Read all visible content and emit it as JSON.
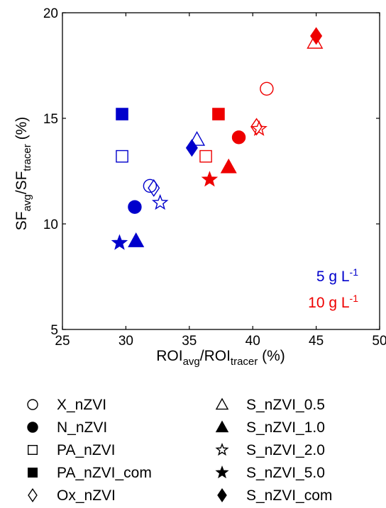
{
  "chart_data": {
    "type": "scatter",
    "xlabel": {
      "main": "ROI",
      "sub1": "avg",
      "mid": "/ROI",
      "sub2": "tracer",
      "unit": " (%)"
    },
    "ylabel": {
      "main": "SF",
      "sub1": "avg",
      "mid": "/SF",
      "sub2": "tracer",
      "unit": " (%)"
    },
    "xlim": [
      25,
      50
    ],
    "ylim": [
      5,
      20
    ],
    "xticks": [
      25,
      30,
      35,
      40,
      45,
      50
    ],
    "yticks": [
      5,
      10,
      15,
      20
    ],
    "grid": false,
    "colors": {
      "5": "#0000cc",
      "10": "#ee0000"
    },
    "concentration_labels": [
      {
        "key": "5",
        "text": "5 g L",
        "sup": "-1"
      },
      {
        "key": "10",
        "text": "10 g L",
        "sup": "-1"
      }
    ],
    "legend": [
      {
        "name": "X_nZVI",
        "marker": "circle",
        "filled": false
      },
      {
        "name": "N_nZVI",
        "marker": "circle",
        "filled": true
      },
      {
        "name": "PA_nZVI",
        "marker": "square",
        "filled": false
      },
      {
        "name": "PA_nZVI_com",
        "marker": "square",
        "filled": true
      },
      {
        "name": "Ox_nZVI",
        "marker": "diamond",
        "filled": false
      },
      {
        "name": "S_nZVI_0.5",
        "marker": "triangle",
        "filled": false
      },
      {
        "name": "S_nZVI_1.0",
        "marker": "triangle",
        "filled": true
      },
      {
        "name": "S_nZVI_2.0",
        "marker": "star",
        "filled": false
      },
      {
        "name": "S_nZVI_5.0",
        "marker": "star",
        "filled": true
      },
      {
        "name": "S_nZVI_com",
        "marker": "diamond",
        "filled": true
      }
    ],
    "points": [
      {
        "material": "X_nZVI",
        "conc": "5",
        "x": 31.9,
        "y": 11.8
      },
      {
        "material": "N_nZVI",
        "conc": "5",
        "x": 30.7,
        "y": 10.8
      },
      {
        "material": "PA_nZVI",
        "conc": "5",
        "x": 29.7,
        "y": 13.2
      },
      {
        "material": "PA_nZVI_com",
        "conc": "5",
        "x": 29.7,
        "y": 15.2
      },
      {
        "material": "Ox_nZVI",
        "conc": "5",
        "x": 32.2,
        "y": 11.7
      },
      {
        "material": "S_nZVI_0.5",
        "conc": "5",
        "x": 35.6,
        "y": 14.0
      },
      {
        "material": "S_nZVI_1.0",
        "conc": "5",
        "x": 30.8,
        "y": 9.2
      },
      {
        "material": "S_nZVI_2.0",
        "conc": "5",
        "x": 32.7,
        "y": 11.0
      },
      {
        "material": "S_nZVI_5.0",
        "conc": "5",
        "x": 29.5,
        "y": 9.1
      },
      {
        "material": "S_nZVI_com",
        "conc": "5",
        "x": 35.2,
        "y": 13.6
      },
      {
        "material": "X_nZVI",
        "conc": "10",
        "x": 41.1,
        "y": 16.4
      },
      {
        "material": "N_nZVI",
        "conc": "10",
        "x": 38.9,
        "y": 14.1
      },
      {
        "material": "PA_nZVI",
        "conc": "10",
        "x": 36.3,
        "y": 13.2
      },
      {
        "material": "PA_nZVI_com",
        "conc": "10",
        "x": 37.3,
        "y": 15.2
      },
      {
        "material": "Ox_nZVI",
        "conc": "10",
        "x": 40.3,
        "y": 14.6
      },
      {
        "material": "S_nZVI_0.5",
        "conc": "10",
        "x": 44.9,
        "y": 18.6
      },
      {
        "material": "S_nZVI_1.0",
        "conc": "10",
        "x": 38.1,
        "y": 12.7
      },
      {
        "material": "S_nZVI_2.0",
        "conc": "10",
        "x": 40.5,
        "y": 14.5
      },
      {
        "material": "S_nZVI_5.0",
        "conc": "10",
        "x": 36.6,
        "y": 12.1
      },
      {
        "material": "S_nZVI_com",
        "conc": "10",
        "x": 45.0,
        "y": 18.9
      }
    ]
  }
}
